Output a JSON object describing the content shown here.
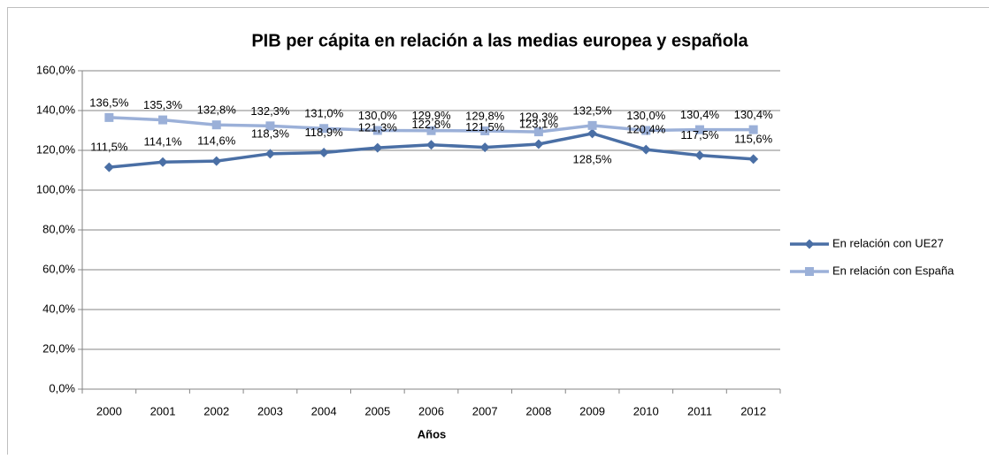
{
  "chart_data": {
    "type": "line",
    "title": "PIB per cápita en relación a las medias europea y española",
    "xlabel": "Años",
    "categories": [
      "2000",
      "2001",
      "2002",
      "2003",
      "2004",
      "2005",
      "2006",
      "2007",
      "2008",
      "2009",
      "2010",
      "2011",
      "2012"
    ],
    "series": [
      {
        "name": "En relación con UE27",
        "color": "#4a6fa5",
        "marker": "diamond",
        "values": [
          111.5,
          114.1,
          114.6,
          118.3,
          118.9,
          121.3,
          122.8,
          121.5,
          123.1,
          128.5,
          120.4,
          117.5,
          115.6
        ],
        "value_labels": [
          "111,5%",
          "114,1%",
          "114,6%",
          "118,3%",
          "118,9%",
          "121,3%",
          "122,8%",
          "121,5%",
          "123,1%",
          "128,5%",
          "120,4%",
          "117,5%",
          "115,6%"
        ]
      },
      {
        "name": "En relación con España",
        "color": "#9bb0d8",
        "marker": "square",
        "values": [
          136.5,
          135.3,
          132.8,
          132.3,
          131.0,
          130.0,
          129.9,
          129.8,
          129.3,
          132.5,
          130.0,
          130.4,
          130.4
        ],
        "value_labels": [
          "136,5%",
          "135,3%",
          "132,8%",
          "132,3%",
          "131,0%",
          "130,0%",
          "129,9%",
          "129,8%",
          "129,3%",
          "132,5%",
          "130,0%",
          "130,4%",
          "130,4%"
        ]
      }
    ],
    "ylim": [
      0,
      160
    ],
    "yticks": [
      {
        "value": 0,
        "label": "0,0%"
      },
      {
        "value": 20,
        "label": "20,0%"
      },
      {
        "value": 40,
        "label": "40,0%"
      },
      {
        "value": 60,
        "label": "60,0%"
      },
      {
        "value": 80,
        "label": "80,0%"
      },
      {
        "value": 100,
        "label": "100,0%"
      },
      {
        "value": 120,
        "label": "120,0%"
      },
      {
        "value": 140,
        "label": "140,0%"
      },
      {
        "value": 160,
        "label": "160,0%"
      }
    ],
    "grid": true,
    "legend": "right"
  }
}
